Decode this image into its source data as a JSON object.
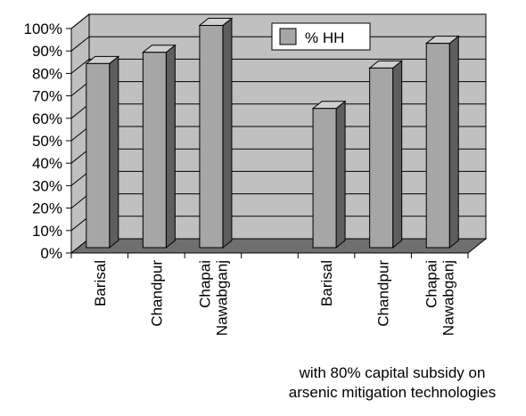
{
  "chart_data": {
    "type": "bar",
    "categories": [
      "Barisal",
      "Chandpur",
      "Chapai Nawabganj",
      "Barisal",
      "Chandpur",
      "Chapai Nawabganj"
    ],
    "groups": [
      {
        "label": "",
        "categories": [
          "Barisal",
          "Chandpur",
          "Chapai Nawabganj"
        ]
      },
      {
        "label": "",
        "categories": [
          "Barisal",
          "Chandpur",
          "Chapai Nawabganj"
        ]
      }
    ],
    "series": [
      {
        "name": "% HH",
        "values": [
          82,
          87,
          99,
          62,
          80,
          91
        ]
      }
    ],
    "ylim": [
      0,
      100
    ],
    "yticks": [
      "0%",
      "10%",
      "20%",
      "30%",
      "40%",
      "50%",
      "60%",
      "70%",
      "80%",
      "90%",
      "100%"
    ],
    "grid": true,
    "legend": "top-center",
    "title": "",
    "xlabel": "",
    "ylabel": "",
    "annotation_lines": [
      "with 80% capital subsidy on",
      "arsenic mitigation technologies"
    ],
    "colors": {
      "bar_front": "#a6a6a6",
      "bar_side": "#5e5e5e",
      "bar_top": "#cfcfcf",
      "wall": "#c0c0c0",
      "floor": "#6f6f6f"
    }
  }
}
